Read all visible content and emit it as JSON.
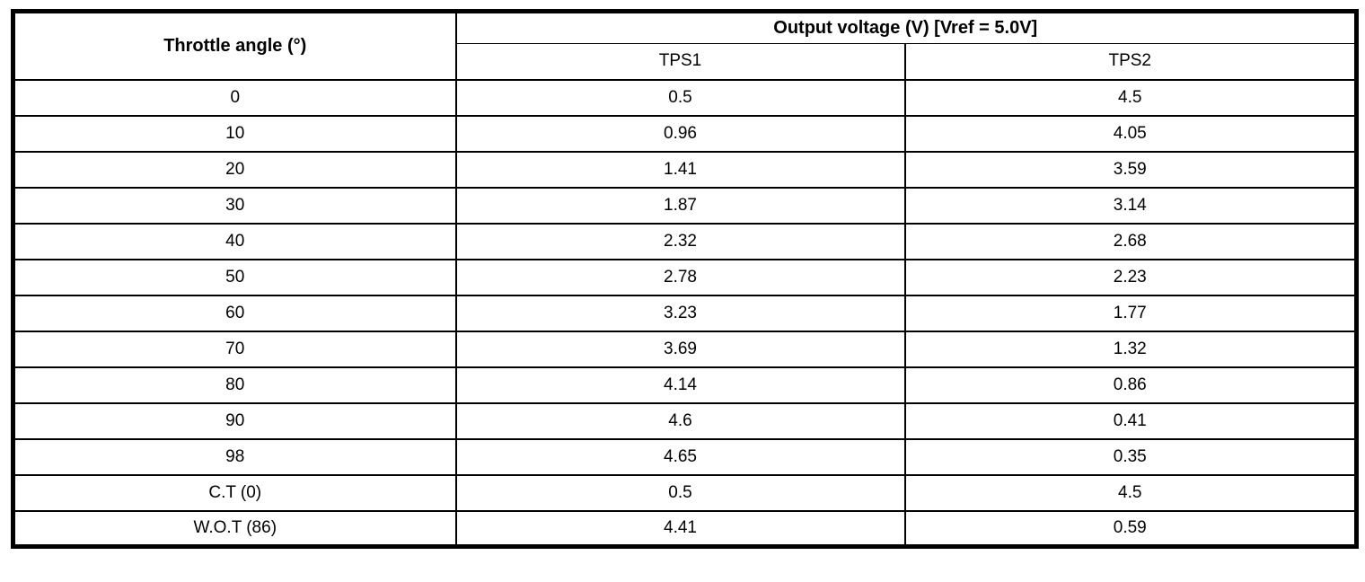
{
  "table": {
    "header": {
      "throttle_angle": "Throttle angle (°)",
      "output_voltage": "Output voltage (V) [Vref = 5.0V]",
      "tps1": "TPS1",
      "tps2": "TPS2"
    },
    "rows": [
      {
        "angle": "0",
        "tps1": "0.5",
        "tps2": "4.5"
      },
      {
        "angle": "10",
        "tps1": "0.96",
        "tps2": "4.05"
      },
      {
        "angle": "20",
        "tps1": "1.41",
        "tps2": "3.59"
      },
      {
        "angle": "30",
        "tps1": "1.87",
        "tps2": "3.14"
      },
      {
        "angle": "40",
        "tps1": "2.32",
        "tps2": "2.68"
      },
      {
        "angle": "50",
        "tps1": "2.78",
        "tps2": "2.23"
      },
      {
        "angle": "60",
        "tps1": "3.23",
        "tps2": "1.77"
      },
      {
        "angle": "70",
        "tps1": "3.69",
        "tps2": "1.32"
      },
      {
        "angle": "80",
        "tps1": "4.14",
        "tps2": "0.86"
      },
      {
        "angle": "90",
        "tps1": "4.6",
        "tps2": "0.41"
      },
      {
        "angle": "98",
        "tps1": "4.65",
        "tps2": "0.35"
      },
      {
        "angle": "C.T (0)",
        "tps1": "0.5",
        "tps2": "4.5"
      },
      {
        "angle": "W.O.T (86)",
        "tps1": "4.41",
        "tps2": "0.59"
      }
    ],
    "colors": {
      "border": "#000000",
      "background": "#ffffff",
      "text": "#000000"
    }
  }
}
